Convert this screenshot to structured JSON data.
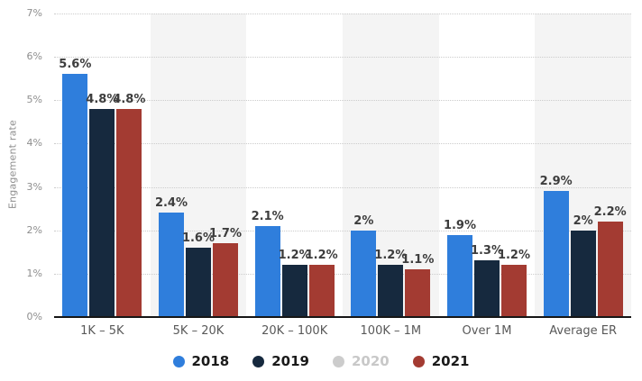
{
  "chart_data": {
    "type": "bar",
    "title": "",
    "xlabel": "",
    "ylabel": "Engagement rate",
    "ylim": [
      0,
      7
    ],
    "yticks": [
      "0%",
      "1%",
      "2%",
      "3%",
      "4%",
      "5%",
      "6%",
      "7%"
    ],
    "grid": "horizontal-dotted",
    "legend_position": "bottom-center",
    "categories": [
      "1K – 5K",
      "5K – 20K",
      "20K – 100K",
      "100K – 1M",
      "Over 1M",
      "Average ER"
    ],
    "series": [
      {
        "name": "2018",
        "color": "#2f7edc",
        "enabled": true,
        "values": [
          5.6,
          2.4,
          2.1,
          2.0,
          1.9,
          2.9
        ],
        "labels": [
          "5.6%",
          "2.4%",
          "2.1%",
          "2%",
          "1.9%",
          "2.9%"
        ]
      },
      {
        "name": "2019",
        "color": "#16293e",
        "enabled": true,
        "values": [
          4.8,
          1.6,
          1.2,
          1.2,
          1.3,
          2.0
        ],
        "labels": [
          "4.8%",
          "1.6%",
          "1.2%",
          "1.2%",
          "1.3%",
          "2%"
        ]
      },
      {
        "name": "2020",
        "color": "#cccccc",
        "enabled": false,
        "values": [],
        "labels": []
      },
      {
        "name": "2021",
        "color": "#a33b32",
        "enabled": true,
        "values": [
          4.8,
          1.7,
          1.2,
          1.1,
          1.2,
          2.2
        ],
        "labels": [
          "4.8%",
          "1.7%",
          "1.2%",
          "1.1%",
          "1.2%",
          "2.2%"
        ]
      }
    ],
    "colors": {
      "band": "#f4f4f4",
      "grid": "#cccccc",
      "axis": "#161616",
      "ytick_text": "#8e8e8e",
      "xtick_text": "#595959",
      "value_label_text": "#3d3d3d",
      "legend_text": "#1a1a1a",
      "legend_disabled_text": "#c8c8c8"
    }
  }
}
